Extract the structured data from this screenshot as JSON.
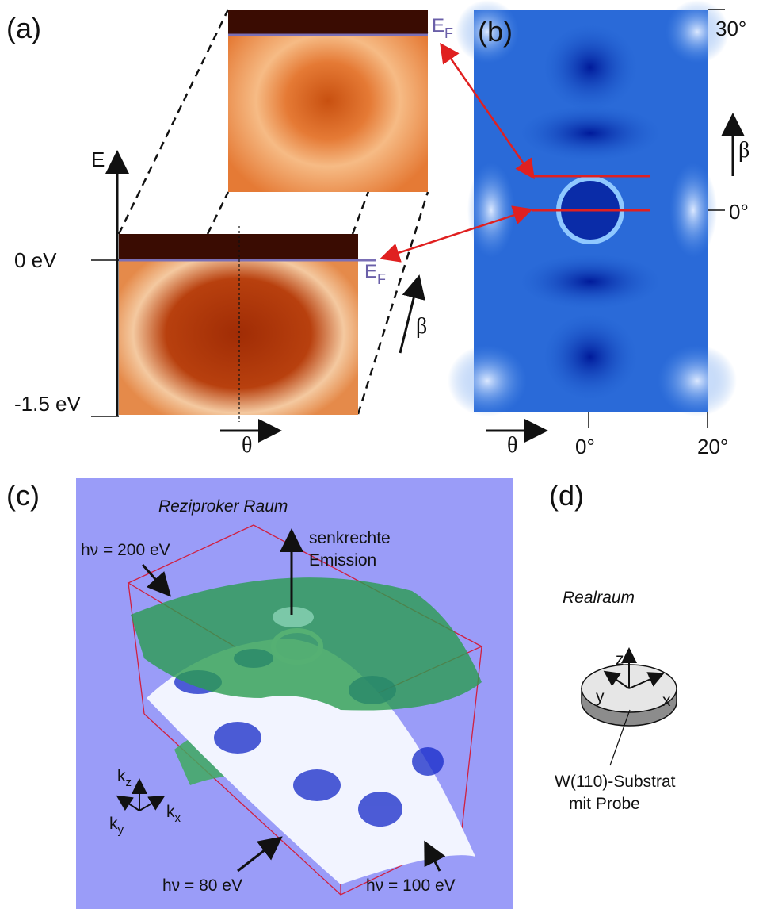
{
  "panels": [
    {
      "label": "(a)",
      "axis_label": "E",
      "ticks": [
        "0 eV",
        "-1.5 eV"
      ],
      "fermi": {
        "main": "E",
        "sub": "F"
      },
      "theta": "θ",
      "beta": "β"
    },
    {
      "label": "(b)",
      "beta_ticks": [
        "30°",
        "0°"
      ],
      "theta_ticks": [
        "0°",
        "20°"
      ],
      "theta": "θ",
      "beta": "β"
    },
    {
      "label": "(c)",
      "title": "Reziproker Raum",
      "surfaces": [
        "hν = 200 eV",
        "hν = 80 eV",
        "hν = 100 eV"
      ],
      "normal": [
        "senkrechte",
        "Emission"
      ],
      "axes": [
        {
          "main": "k",
          "sub": "z"
        },
        {
          "main": "k",
          "sub": "y"
        },
        {
          "main": "k",
          "sub": "x"
        }
      ]
    },
    {
      "label": "(d)",
      "title": "Realraum",
      "axes": [
        "z",
        "y",
        "x"
      ],
      "sample": [
        "W(110)-Substrat",
        "mit Probe"
      ]
    }
  ]
}
